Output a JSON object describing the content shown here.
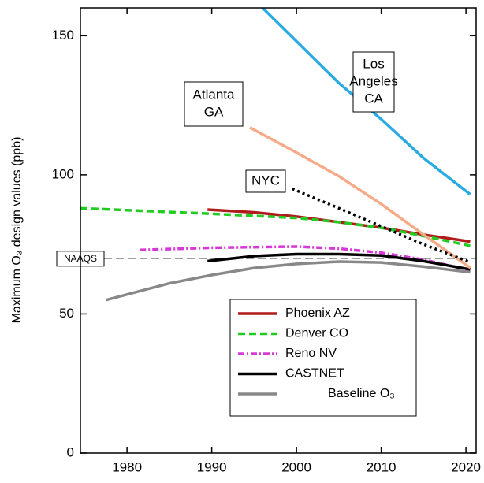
{
  "chart_data": {
    "type": "line",
    "y_label": "Maximum O₃ design values (ppb)",
    "xlim": [
      1974.5,
      2021.2
    ],
    "ylim": [
      0,
      160
    ],
    "xticks": [
      1980,
      1990,
      2000,
      2010,
      2020
    ],
    "yticks": [
      0,
      50,
      100,
      150
    ],
    "reference_line": {
      "label": "NAAQS",
      "value": 70,
      "color": "#000",
      "dash": "dashed"
    },
    "series": [
      {
        "name": "Phoenix AZ",
        "color": "#b01c1c",
        "dash": "solid",
        "x": [
          1989.5,
          1995,
          2000,
          2005,
          2010,
          2015,
          2020.5
        ],
        "values": [
          87.5,
          86.5,
          85,
          83,
          81,
          78.5,
          76
        ]
      },
      {
        "name": "Denver CO",
        "color": "#22cc22",
        "dash": "dashed",
        "x": [
          1974.5,
          1980,
          1990,
          2000,
          2005,
          2010,
          2015,
          2020.5
        ],
        "values": [
          88,
          87.3,
          86,
          84.5,
          83,
          81,
          78,
          74.5
        ]
      },
      {
        "name": "Reno NV",
        "color": "#d63ad6",
        "dash": "dashdot",
        "x": [
          1981.5,
          1990,
          2000,
          2005,
          2010,
          2015,
          2020.5
        ],
        "values": [
          73,
          73.8,
          74.2,
          73.5,
          72,
          69.5,
          65.7
        ]
      },
      {
        "name": "CASTNET",
        "color": "#000000",
        "dash": "solid",
        "x": [
          1989.5,
          1995,
          2000,
          2005,
          2010,
          2015,
          2020.5
        ],
        "values": [
          69,
          70.8,
          71.5,
          71.5,
          71,
          69,
          66
        ]
      },
      {
        "name": "Baseline O₃",
        "color": "#888888",
        "dash": "solid",
        "x": [
          1977.5,
          1985,
          1990,
          1995,
          2000,
          2005,
          2010,
          2015,
          2020.5
        ],
        "values": [
          55,
          61,
          64,
          66.5,
          68,
          68.8,
          68.5,
          67,
          65
        ]
      }
    ],
    "labeled_series": [
      {
        "label_lines": [
          "Los",
          "Angeles",
          "CA"
        ],
        "color": "#29abe2",
        "dash": "solid",
        "x": [
          1996,
          2000,
          2005,
          2010,
          2015,
          2020.5
        ],
        "values": [
          160,
          148,
          133,
          120,
          106,
          93
        ]
      },
      {
        "label_lines": [
          "Atlanta",
          "GA"
        ],
        "color": "#f5aa88",
        "dash": "solid",
        "x": [
          1994.5,
          2000,
          2005,
          2010,
          2015,
          2020.5
        ],
        "values": [
          117,
          108,
          99.5,
          89.5,
          78.5,
          66.6
        ]
      },
      {
        "label_lines": [
          "NYC"
        ],
        "color": "#000000",
        "dash": "dotted",
        "x": [
          1999.5,
          2005,
          2010,
          2015,
          2020.5
        ],
        "values": [
          95,
          88,
          81.5,
          75,
          68.6
        ]
      }
    ]
  }
}
